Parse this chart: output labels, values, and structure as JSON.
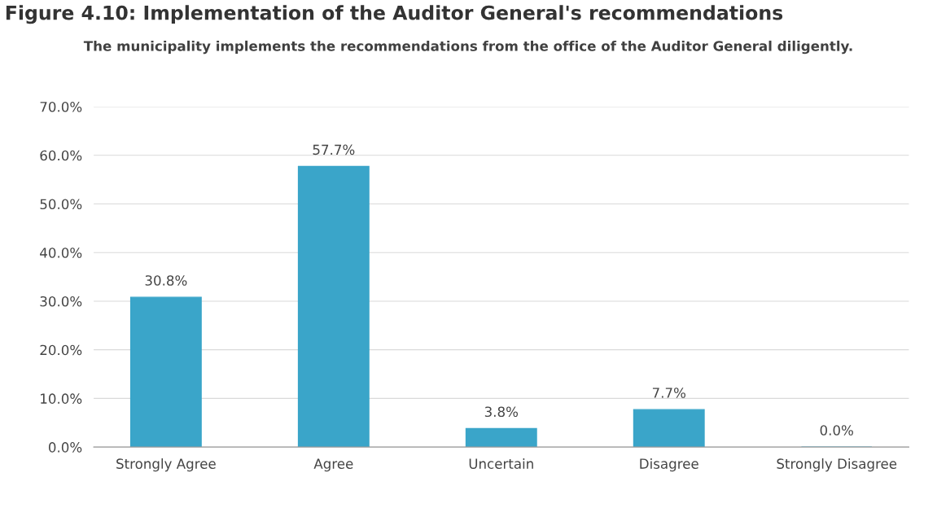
{
  "chart_data": {
    "type": "bar",
    "title": "Figure 4.10: Implementation of the Auditor General's recommendations",
    "subtitle": "The municipality implements the recommendations from the office of the Auditor General diligently.",
    "categories": [
      "Strongly Agree",
      "Agree",
      "Uncertain",
      "Disagree",
      "Strongly Disagree"
    ],
    "values": [
      30.8,
      57.7,
      3.8,
      7.7,
      0.0
    ],
    "value_labels": [
      "30.8%",
      "57.7%",
      "3.8%",
      "7.7%",
      "0.0%"
    ],
    "color": "#3aa5c9",
    "ylim": [
      0,
      70
    ],
    "yticks": [
      {
        "value": 0,
        "label": "0.0%"
      },
      {
        "value": 10,
        "label": "10.0%"
      },
      {
        "value": 20,
        "label": "20.0%"
      },
      {
        "value": 30,
        "label": "30.0%"
      },
      {
        "value": 40,
        "label": "40.0%"
      },
      {
        "value": 50,
        "label": "50.0%"
      },
      {
        "value": 60,
        "label": "60.0%"
      },
      {
        "value": 70,
        "label": "70.0%"
      }
    ],
    "grid": "y"
  }
}
